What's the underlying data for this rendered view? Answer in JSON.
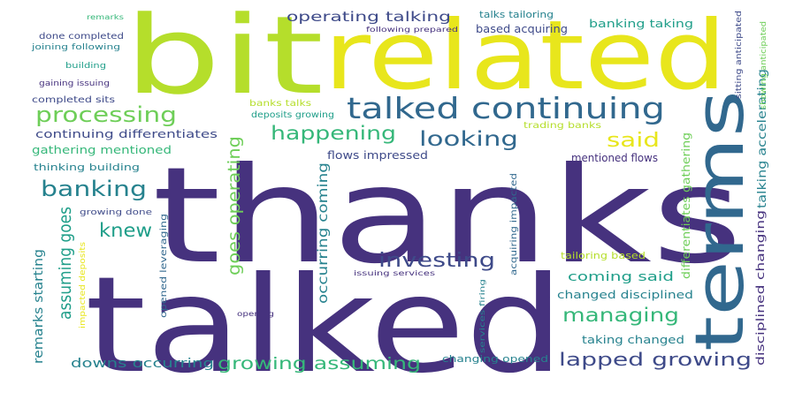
{
  "palette": {
    "background": "#ffffff",
    "dark_purple": "#46327e",
    "indigo": "#3e4a89",
    "blue": "#31688e",
    "teal": "#26828e",
    "green_teal": "#1f9e89",
    "green": "#35b779",
    "light_green": "#6ece58",
    "lime": "#b5de2b",
    "yellow": "#e8e61c"
  },
  "words": [
    {
      "text": "thanks"
    },
    {
      "text": "talked"
    },
    {
      "text": "bit"
    },
    {
      "text": "related"
    },
    {
      "text": "terms"
    },
    {
      "text": "talked continuing"
    },
    {
      "text": "processing"
    },
    {
      "text": "happening"
    },
    {
      "text": "looking"
    },
    {
      "text": "said"
    },
    {
      "text": "banking"
    },
    {
      "text": "knew"
    },
    {
      "text": "investing"
    },
    {
      "text": "managing"
    },
    {
      "text": "lapped growing"
    },
    {
      "text": "growing assuming"
    },
    {
      "text": "assuming goes"
    },
    {
      "text": "goes operating"
    },
    {
      "text": "occurring coming"
    },
    {
      "text": "operating talking"
    },
    {
      "text": "talking accelerating"
    },
    {
      "text": "disciplined changing"
    },
    {
      "text": "differentiates gathering"
    },
    {
      "text": "remarks starting"
    },
    {
      "text": "downs occurring"
    },
    {
      "text": "coming said"
    },
    {
      "text": "changed disciplined"
    },
    {
      "text": "taking changed"
    },
    {
      "text": "changing opened"
    },
    {
      "text": "tailoring based"
    },
    {
      "text": "mentioned flows"
    },
    {
      "text": "continuing differentiates"
    },
    {
      "text": "gathering mentioned"
    },
    {
      "text": "thinking building"
    },
    {
      "text": "completed sits"
    },
    {
      "text": "done completed"
    },
    {
      "text": "joining following"
    },
    {
      "text": "building"
    },
    {
      "text": "gaining issuing"
    },
    {
      "text": "remarks"
    },
    {
      "text": "following prepared"
    },
    {
      "text": "talks tailoring"
    },
    {
      "text": "based acquiring"
    },
    {
      "text": "banking taking"
    },
    {
      "text": "trading banks"
    },
    {
      "text": "flows impressed"
    },
    {
      "text": "banks talks"
    },
    {
      "text": "deposits growing"
    },
    {
      "text": "growing done"
    },
    {
      "text": "opened leveraging"
    },
    {
      "text": "impacted deposits"
    },
    {
      "text": "issuing services"
    },
    {
      "text": "services firing"
    },
    {
      "text": "acquiring impacted"
    },
    {
      "text": "opening"
    },
    {
      "text": "sitting anticipated"
    },
    {
      "text": "showing anticipated"
    }
  ]
}
